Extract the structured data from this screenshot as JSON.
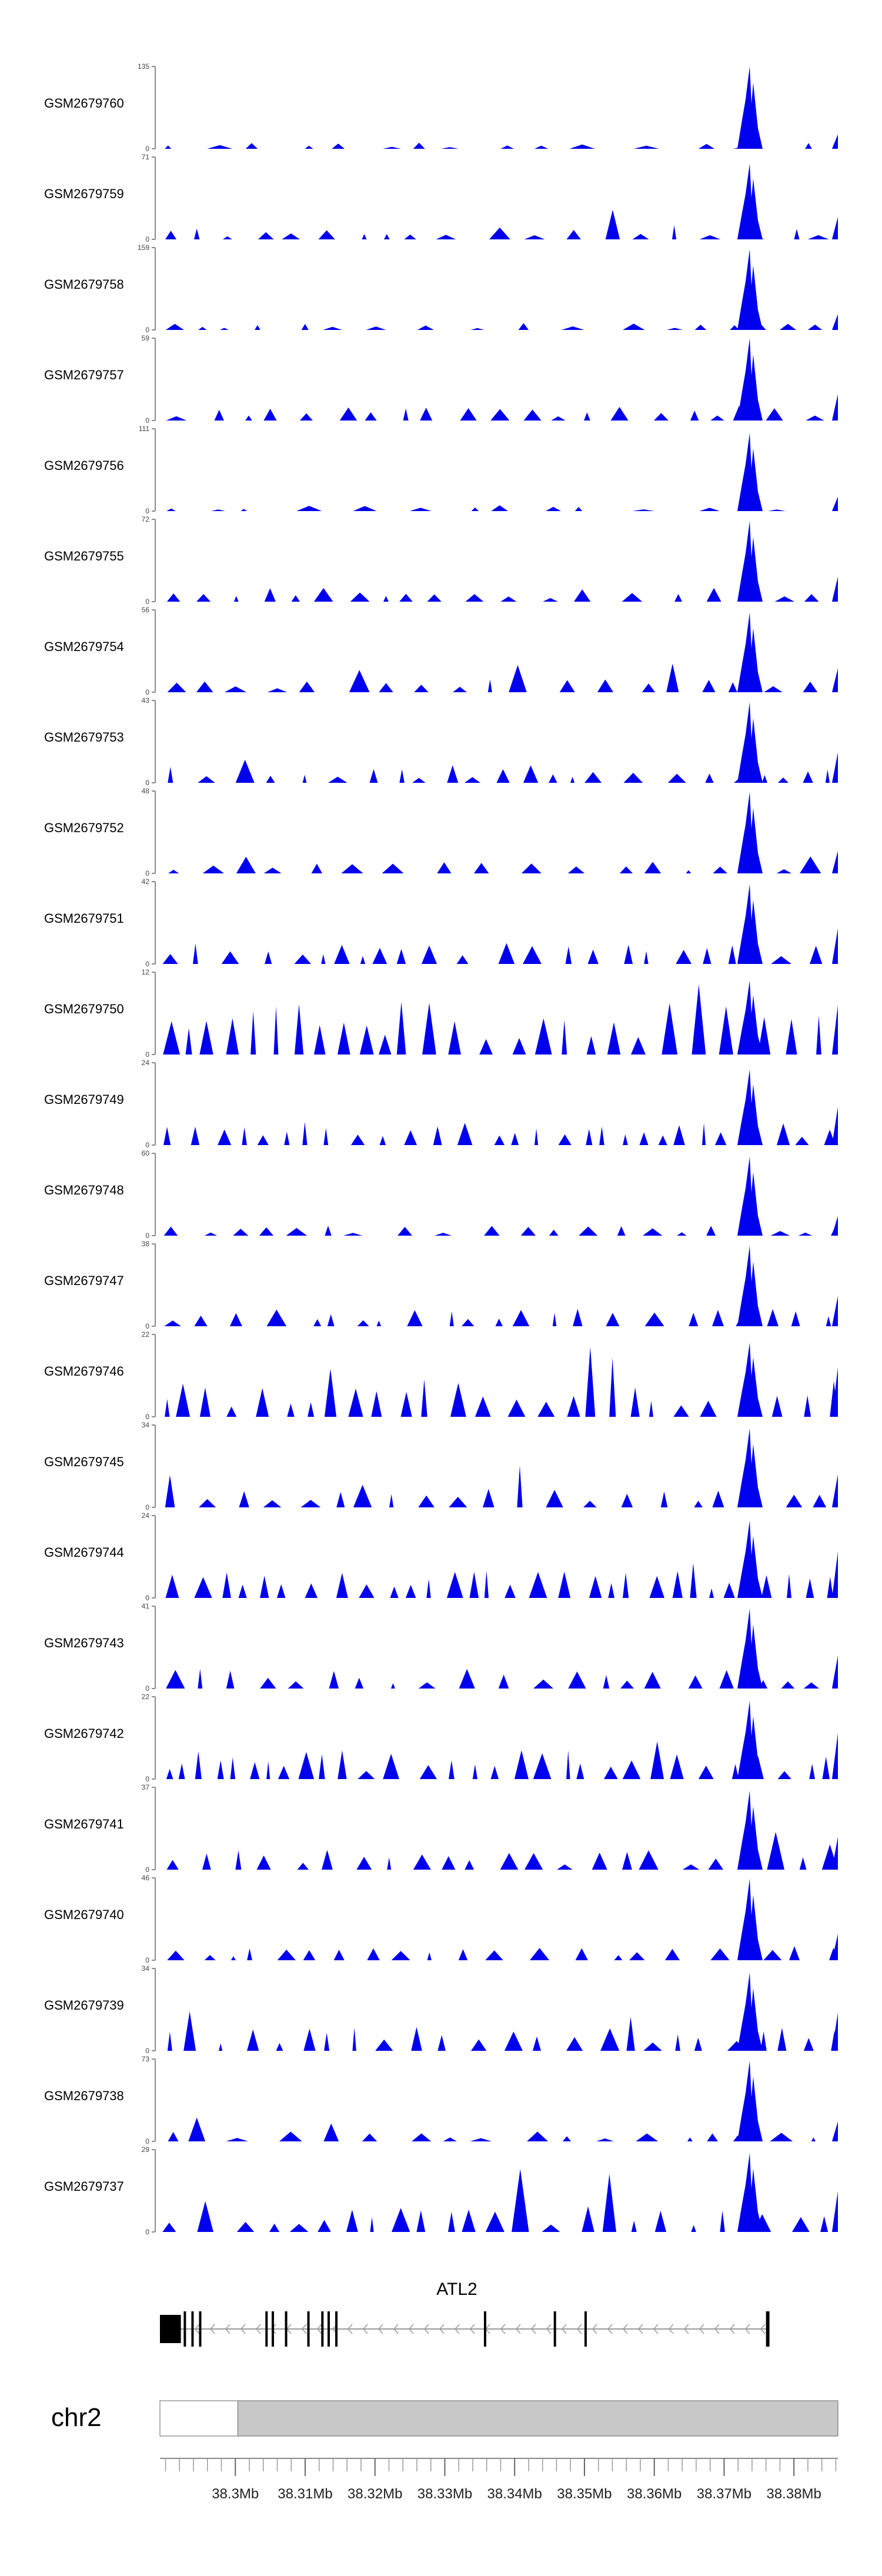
{
  "chart_data": {
    "type": "area",
    "genome": {
      "chromosome": "chr2",
      "x_range_bp": [
        38289200,
        38386300
      ],
      "x_ticks": [
        {
          "bp": 38300000,
          "label": "38.3Mb"
        },
        {
          "bp": 38310000,
          "label": "38.31Mb"
        },
        {
          "bp": 38320000,
          "label": "38.32Mb"
        },
        {
          "bp": 38330000,
          "label": "38.33Mb"
        },
        {
          "bp": 38340000,
          "label": "38.34Mb"
        },
        {
          "bp": 38350000,
          "label": "38.35Mb"
        },
        {
          "bp": 38360000,
          "label": "38.36Mb"
        },
        {
          "bp": 38370000,
          "label": "38.37Mb"
        },
        {
          "bp": 38380000,
          "label": "38.38Mb"
        }
      ],
      "ideogram_highlight_bp": [
        38289200,
        38295300
      ]
    },
    "gene": {
      "name": "ATL2",
      "strand": "-",
      "span_bp": [
        38289200,
        38376500
      ],
      "exons_bp": [
        [
          38289200,
          38292200
        ],
        [
          38292600,
          38292900
        ],
        [
          38293700,
          38294000
        ],
        [
          38294800,
          38295000
        ],
        [
          38304300,
          38304600
        ],
        [
          38305200,
          38305400
        ],
        [
          38307100,
          38307300
        ],
        [
          38310300,
          38310600
        ],
        [
          38312300,
          38312600
        ],
        [
          38313200,
          38313500
        ],
        [
          38314300,
          38314600
        ],
        [
          38335600,
          38335900
        ],
        [
          38345600,
          38345900
        ],
        [
          38350000,
          38350300
        ],
        [
          38376000,
          38376500
        ]
      ]
    },
    "track_color": "#0000ee",
    "series": [
      {
        "name": "GSM2679760",
        "ymax": 135,
        "ylim": [
          0,
          135
        ],
        "density": 0.55,
        "peak": 1.0,
        "base": 0.06
      },
      {
        "name": "GSM2679759",
        "ymax": 71,
        "ylim": [
          0,
          71
        ],
        "density": 0.8,
        "peak": 0.92,
        "base": 0.12
      },
      {
        "name": "GSM2679758",
        "ymax": 159,
        "ylim": [
          0,
          159
        ],
        "density": 0.6,
        "peak": 0.98,
        "base": 0.07
      },
      {
        "name": "GSM2679757",
        "ymax": 59,
        "ylim": [
          0,
          59
        ],
        "density": 0.9,
        "peak": 1.0,
        "base": 0.15
      },
      {
        "name": "GSM2679756",
        "ymax": 111,
        "ylim": [
          0,
          111
        ],
        "density": 0.55,
        "peak": 0.95,
        "base": 0.06
      },
      {
        "name": "GSM2679755",
        "ymax": 72,
        "ylim": [
          0,
          72
        ],
        "density": 0.85,
        "peak": 0.98,
        "base": 0.14
      },
      {
        "name": "GSM2679754",
        "ymax": 56,
        "ylim": [
          0,
          56
        ],
        "density": 0.8,
        "peak": 0.97,
        "base": 0.13
      },
      {
        "name": "GSM2679753",
        "ymax": 43,
        "ylim": [
          0,
          43
        ],
        "density": 1.0,
        "peak": 0.98,
        "base": 0.18
      },
      {
        "name": "GSM2679752",
        "ymax": 48,
        "ylim": [
          0,
          48
        ],
        "density": 0.8,
        "peak": 0.99,
        "base": 0.12
      },
      {
        "name": "GSM2679751",
        "ymax": 42,
        "ylim": [
          0,
          42
        ],
        "density": 0.9,
        "peak": 0.97,
        "base": 0.22
      },
      {
        "name": "GSM2679750",
        "ymax": 12,
        "ylim": [
          0,
          12
        ],
        "density": 1.4,
        "peak": 0.9,
        "base": 0.55
      },
      {
        "name": "GSM2679749",
        "ymax": 24,
        "ylim": [
          0,
          24
        ],
        "density": 1.2,
        "peak": 0.92,
        "base": 0.24
      },
      {
        "name": "GSM2679748",
        "ymax": 60,
        "ylim": [
          0,
          60
        ],
        "density": 0.7,
        "peak": 0.96,
        "base": 0.1
      },
      {
        "name": "GSM2679747",
        "ymax": 38,
        "ylim": [
          0,
          38
        ],
        "density": 1.0,
        "peak": 0.98,
        "base": 0.18
      },
      {
        "name": "GSM2679746",
        "ymax": 22,
        "ylim": [
          0,
          22
        ],
        "density": 1.2,
        "peak": 0.9,
        "base": 0.38
      },
      {
        "name": "GSM2679745",
        "ymax": 34,
        "ylim": [
          0,
          34
        ],
        "density": 1.0,
        "peak": 0.96,
        "base": 0.2
      },
      {
        "name": "GSM2679744",
        "ymax": 24,
        "ylim": [
          0,
          24
        ],
        "density": 1.2,
        "peak": 0.94,
        "base": 0.3
      },
      {
        "name": "GSM2679743",
        "ymax": 41,
        "ylim": [
          0,
          41
        ],
        "density": 1.0,
        "peak": 0.97,
        "base": 0.2
      },
      {
        "name": "GSM2679742",
        "ymax": 22,
        "ylim": [
          0,
          22
        ],
        "density": 1.3,
        "peak": 0.95,
        "base": 0.3
      },
      {
        "name": "GSM2679741",
        "ymax": 37,
        "ylim": [
          0,
          37
        ],
        "density": 1.0,
        "peak": 0.96,
        "base": 0.2
      },
      {
        "name": "GSM2679740",
        "ymax": 46,
        "ylim": [
          0,
          46
        ],
        "density": 0.9,
        "peak": 0.99,
        "base": 0.15
      },
      {
        "name": "GSM2679739",
        "ymax": 34,
        "ylim": [
          0,
          34
        ],
        "density": 1.1,
        "peak": 0.95,
        "base": 0.24
      },
      {
        "name": "GSM2679738",
        "ymax": 73,
        "ylim": [
          0,
          73
        ],
        "density": 0.7,
        "peak": 0.98,
        "base": 0.1
      },
      {
        "name": "GSM2679737",
        "ymax": 29,
        "ylim": [
          0,
          29
        ],
        "density": 1.1,
        "peak": 0.96,
        "base": 0.26
      }
    ]
  }
}
